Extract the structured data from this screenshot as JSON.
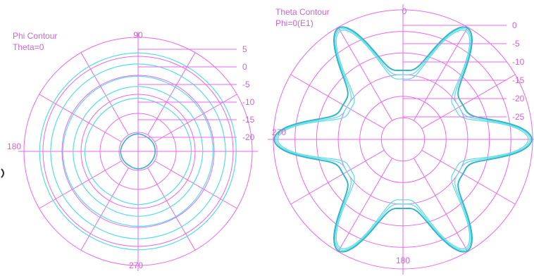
{
  "chart_data": [
    {
      "type": "polar",
      "title": "Phi Contour",
      "subtitle": "Theta=0",
      "angle_labels": [
        "90",
        "180",
        "270"
      ],
      "radial_ticks": [
        "5",
        "0",
        "-5",
        "-10",
        "-15",
        "-20"
      ],
      "rlim": [
        -25,
        5
      ],
      "grid": true,
      "spoke_step_deg": 30,
      "colors": {
        "grid": "#ee66ee",
        "trace": "#55dde8",
        "trace_dark": "#33b5c8",
        "label": "#cc66cc"
      },
      "series": [
        {
          "values_db": [
            -20.5,
            -20.6,
            -20.5,
            -20.4,
            -20.6,
            -20.5,
            -20.4,
            -20.6,
            -20.5,
            -20.4,
            -20.6,
            -20.5
          ]
        },
        {
          "values_db": [
            -11,
            -11.3,
            -11.2,
            -11,
            -11.4,
            -11.1,
            -11,
            -11.3,
            -11.2,
            -11,
            -11.4,
            -11.1
          ]
        },
        {
          "values_db": [
            -8,
            -8.2,
            -8.1,
            -7.9,
            -8.2,
            -8,
            -7.9,
            -8.2,
            -8.1,
            -7.9,
            -8.2,
            -8
          ]
        },
        {
          "values_db": [
            -5.3,
            -5.4,
            -5.2,
            -5.3,
            -5.5,
            -5.3,
            -5.2,
            -5.4,
            -5.3,
            -5.2,
            -5.5,
            -5.3
          ]
        },
        {
          "values_db": [
            -2,
            -2.2,
            -2.1,
            -2,
            -2.2,
            -2.1,
            -2,
            -2.2,
            -2.1,
            -2,
            -2.2,
            -2.1
          ]
        },
        {
          "values_db": [
            0.8,
            0.7,
            0.8,
            0.9,
            0.7,
            0.8,
            0.9,
            0.7,
            0.8,
            0.9,
            0.7,
            0.8
          ]
        }
      ]
    },
    {
      "type": "polar",
      "title": "Theta Contour",
      "subtitle": "Phi=0(E1)",
      "angle_labels": [
        "0",
        "270",
        "180"
      ],
      "radial_ticks": [
        "0",
        "-5",
        "-10",
        "-15",
        "-20",
        "-25"
      ],
      "rlim": [
        -30,
        0
      ],
      "grid": true,
      "spoke_step_deg": 30,
      "colors": {
        "grid": "#ee66ee",
        "trace": "#55dde8",
        "trace_dark": "#33b5c8",
        "label": "#cc66cc"
      },
      "series": [
        {
          "lobes": 6,
          "peak_db": -0.2,
          "null_db": -14
        },
        {
          "lobes": 6,
          "peak_db": -0.6,
          "null_db": -15
        },
        {
          "lobes": 6,
          "peak_db": -1.0,
          "null_db": -16
        }
      ]
    }
  ]
}
